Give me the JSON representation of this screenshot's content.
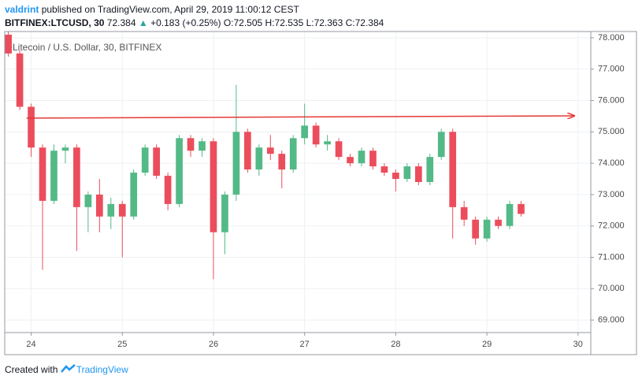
{
  "header": {
    "author": "valdrint",
    "published": "published on TradingView.com, April 29, 2019 11:00:12 CEST",
    "symbol": "BITFINEX:LTCUSD, 30",
    "last": "72.384",
    "change_icon": "▲",
    "change": "+0.183 (+0.25%)",
    "ohlc": "O:72.505 H:72.535 L:72.363 C:72.384"
  },
  "footer": {
    "created": "Created with",
    "brand": "TradingView"
  },
  "chart_data": {
    "type": "candlestick",
    "legend": "Litecoin / U.S. Dollar, 30, BITFINEX",
    "up_color": "#53b987",
    "down_color": "#eb4d5c",
    "x": [
      23.75,
      23.875,
      24,
      24.125,
      24.25,
      24.375,
      24.5,
      24.625,
      24.75,
      24.875,
      25,
      25.125,
      25.25,
      25.375,
      25.5,
      25.625,
      25.75,
      25.875,
      26,
      26.125,
      26.25,
      26.375,
      26.5,
      26.625,
      26.75,
      26.875,
      27,
      27.125,
      27.25,
      27.375,
      27.5,
      27.625,
      27.75,
      27.875,
      28,
      28.125,
      28.25,
      28.375,
      28.5,
      28.625,
      28.75,
      28.875,
      29,
      29.125,
      29.25,
      29.375
    ],
    "open": [
      78.1,
      77.5,
      75.8,
      74.5,
      72.8,
      74.4,
      74.5,
      72.6,
      73.0,
      72.3,
      72.7,
      72.3,
      73.7,
      74.5,
      73.6,
      72.7,
      74.8,
      74.4,
      74.7,
      71.8,
      73.0,
      75.0,
      73.8,
      74.5,
      74.3,
      73.8,
      74.8,
      75.2,
      74.6,
      74.7,
      74.2,
      74.0,
      74.4,
      73.9,
      73.7,
      73.5,
      73.9,
      73.4,
      74.2,
      75.0,
      72.6,
      72.2,
      71.6,
      72.2,
      72.0,
      72.7
    ],
    "high": [
      78.2,
      77.6,
      75.9,
      74.6,
      74.6,
      74.6,
      74.6,
      73.1,
      73.5,
      72.9,
      72.8,
      73.8,
      74.6,
      74.6,
      73.7,
      74.9,
      74.9,
      74.8,
      74.8,
      73.1,
      76.5,
      75.1,
      74.6,
      74.9,
      74.4,
      74.9,
      75.9,
      75.3,
      74.9,
      74.8,
      74.3,
      74.5,
      74.5,
      74.0,
      73.8,
      74.0,
      74.0,
      74.3,
      75.1,
      75.1,
      72.8,
      72.3,
      72.3,
      72.3,
      72.8,
      72.8
    ],
    "low": [
      77.4,
      75.7,
      74.2,
      70.6,
      72.7,
      74.0,
      71.2,
      71.8,
      71.8,
      71.9,
      71.0,
      72.2,
      73.6,
      73.5,
      72.5,
      72.6,
      74.2,
      74.2,
      70.3,
      71.1,
      72.8,
      73.7,
      73.6,
      74.1,
      73.2,
      73.7,
      74.6,
      74.5,
      74.4,
      74.1,
      73.9,
      73.9,
      73.8,
      73.6,
      73.1,
      73.4,
      73.3,
      73.3,
      74.1,
      71.6,
      72.0,
      71.4,
      71.5,
      71.9,
      71.9,
      72.3
    ],
    "close": [
      77.5,
      75.8,
      74.5,
      72.8,
      74.4,
      74.5,
      72.6,
      73.0,
      72.3,
      72.7,
      72.3,
      73.7,
      74.5,
      73.6,
      72.7,
      74.8,
      74.4,
      74.7,
      71.8,
      73.0,
      75.0,
      73.8,
      74.5,
      74.3,
      73.8,
      74.8,
      75.2,
      74.6,
      74.7,
      74.2,
      74.0,
      74.4,
      73.9,
      73.7,
      73.5,
      73.9,
      73.4,
      74.2,
      75.0,
      72.6,
      72.2,
      71.6,
      72.2,
      72.0,
      72.7,
      72.384
    ],
    "trendline": {
      "color": "#e53935",
      "x": [
        23.95,
        29.96
      ],
      "y": [
        75.44,
        75.51
      ]
    },
    "xlim": [
      23.71,
      30.14
    ],
    "xticks": [
      24,
      25,
      26,
      27,
      28,
      29,
      30
    ],
    "ylim": [
      68.6,
      78.2
    ],
    "yticks": [
      {
        "value": 69,
        "label": "69.000"
      },
      {
        "value": 70,
        "label": "70.000"
      },
      {
        "value": 71,
        "label": "71.000"
      },
      {
        "value": 72,
        "label": "72.000"
      },
      {
        "value": 73,
        "label": "73.000"
      },
      {
        "value": 74,
        "label": "74.000"
      },
      {
        "value": 75,
        "label": "75.000"
      },
      {
        "value": 76,
        "label": "76.000"
      },
      {
        "value": 77,
        "label": "77.000"
      },
      {
        "value": 78,
        "label": "78.000"
      }
    ],
    "grid": true
  }
}
